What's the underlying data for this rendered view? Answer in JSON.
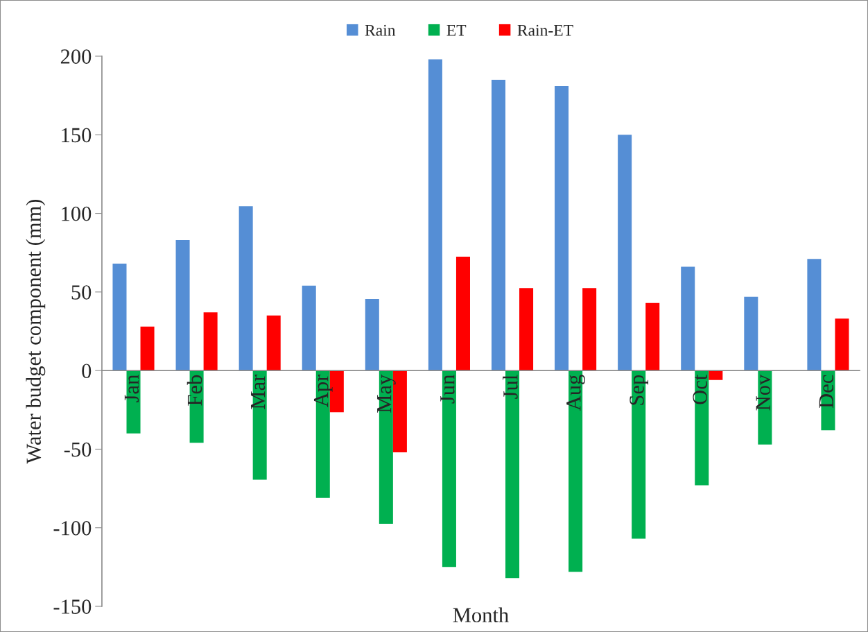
{
  "chart_data": {
    "type": "bar",
    "xlabel": "Month",
    "ylabel": "Water budget component (mm)",
    "categories": [
      "Jan",
      "Feb",
      "Mar",
      "Apr",
      "May",
      "Jun",
      "Jul",
      "Aug",
      "Sep",
      "Oct",
      "Nov",
      "Dec"
    ],
    "series": [
      {
        "name": "Rain",
        "color": "#558ed5",
        "values": [
          68,
          83,
          104.5,
          54,
          45.5,
          198,
          185,
          181,
          150,
          66,
          47,
          71
        ]
      },
      {
        "name": "ET",
        "color": "#00b050",
        "values": [
          -40,
          -46,
          -69.5,
          -81,
          -97.5,
          -125,
          -132,
          -128,
          -107,
          -73,
          -47,
          -38
        ]
      },
      {
        "name": "Rain-ET",
        "color": "#ff0000",
        "values": [
          28,
          37,
          35,
          -26.5,
          -52,
          72.5,
          52.5,
          52.5,
          43,
          -6,
          null,
          33
        ]
      }
    ],
    "ylim": [
      -150,
      200
    ],
    "yticks": [
      -150,
      -100,
      -50,
      0,
      50,
      100,
      150,
      200
    ],
    "legend": "top"
  }
}
